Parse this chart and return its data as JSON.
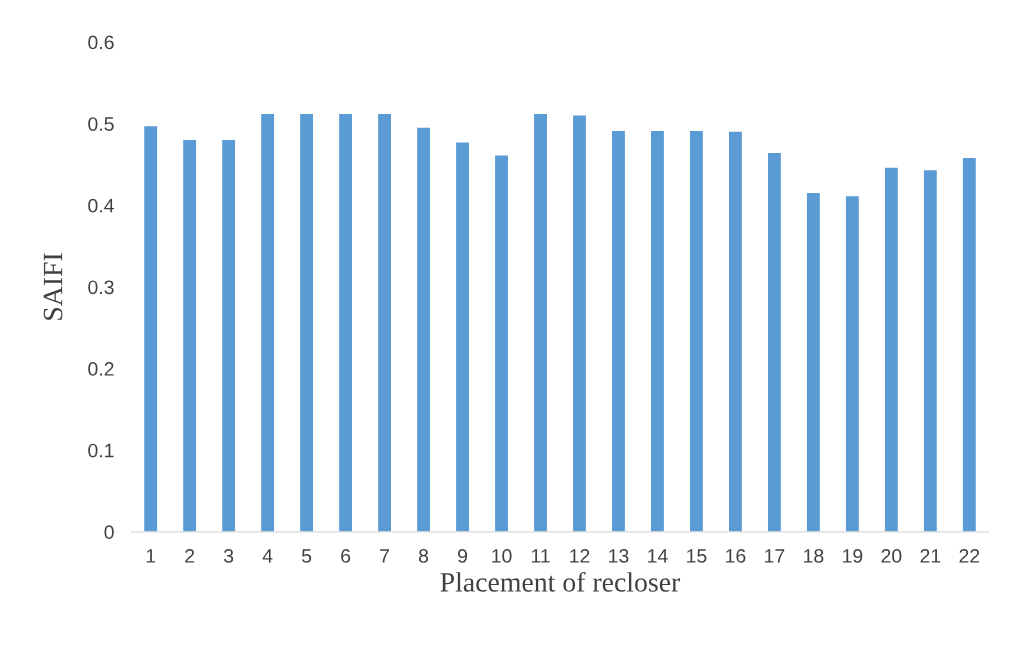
{
  "chart_data": {
    "type": "bar",
    "xlabel": "Placement of recloser",
    "ylabel": "SAIFI",
    "categories": [
      "1",
      "2",
      "3",
      "4",
      "5",
      "6",
      "7",
      "8",
      "9",
      "10",
      "11",
      "12",
      "13",
      "14",
      "15",
      "16",
      "17",
      "18",
      "19",
      "20",
      "21",
      "22"
    ],
    "values": [
      0.497,
      0.48,
      0.48,
      0.512,
      0.512,
      0.512,
      0.512,
      0.495,
      0.477,
      0.461,
      0.512,
      0.51,
      0.491,
      0.491,
      0.491,
      0.49,
      0.464,
      0.415,
      0.411,
      0.446,
      0.443,
      0.458
    ],
    "color": "#5b9bd5",
    "ylim": [
      0,
      0.6
    ],
    "yticks": [
      {
        "value": 0,
        "label": "0"
      },
      0.1,
      0.2,
      0.3,
      0.4,
      0.5,
      0.6
    ],
    "grid": false,
    "legend": false
  }
}
